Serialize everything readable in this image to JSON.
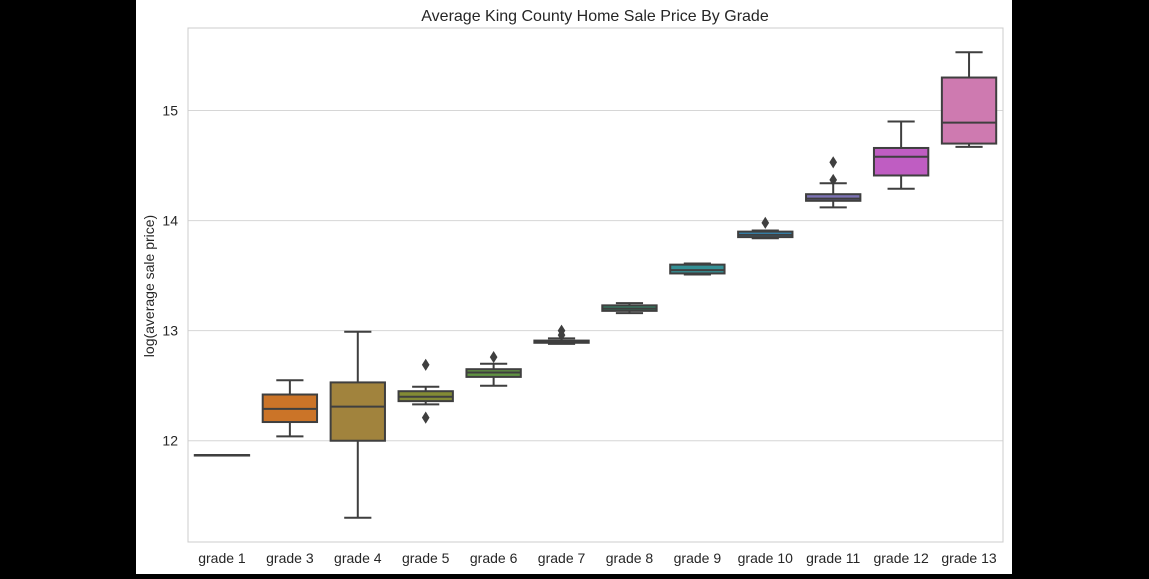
{
  "chart_data": {
    "type": "box",
    "title": "Average King County Home Sale Price By Grade",
    "xlabel": "",
    "ylabel": "log(average sale price)",
    "ylim": [
      11.08,
      15.75
    ],
    "yticks": [
      12,
      13,
      14,
      15
    ],
    "grid": true,
    "categories": [
      "grade 1",
      "grade 3",
      "grade 4",
      "grade 5",
      "grade 6",
      "grade 7",
      "grade 8",
      "grade 9",
      "grade 10",
      "grade 11",
      "grade 12",
      "grade 13"
    ],
    "boxes": [
      {
        "category": "grade 1",
        "color": "#3274a1",
        "min": 11.87,
        "q1": 11.87,
        "median": 11.87,
        "q3": 11.87,
        "max": 11.87,
        "outliers": []
      },
      {
        "category": "grade 3",
        "color": "#e1812c",
        "min": 12.04,
        "q1": 12.17,
        "median": 12.29,
        "q3": 12.42,
        "max": 12.55,
        "outliers": []
      },
      {
        "category": "grade 4",
        "color": "#b39144",
        "min": 11.3,
        "q1": 12.0,
        "median": 12.31,
        "q3": 12.53,
        "max": 12.99,
        "outliers": []
      },
      {
        "category": "grade 5",
        "color": "#929a3b",
        "min": 12.33,
        "q1": 12.36,
        "median": 12.4,
        "q3": 12.45,
        "max": 12.49,
        "outliers": [
          12.69,
          12.21
        ]
      },
      {
        "category": "grade 6",
        "color": "#6ba24a",
        "min": 12.5,
        "q1": 12.58,
        "median": 12.62,
        "q3": 12.65,
        "max": 12.7,
        "outliers": [
          12.76
        ]
      },
      {
        "category": "grade 7",
        "color": "#3a923a",
        "min": 12.88,
        "q1": 12.89,
        "median": 12.9,
        "q3": 12.91,
        "max": 12.93,
        "outliers": [
          13.0,
          12.96
        ]
      },
      {
        "category": "grade 8",
        "color": "#3d8b6e",
        "min": 13.16,
        "q1": 13.18,
        "median": 13.2,
        "q3": 13.23,
        "max": 13.25,
        "outliers": []
      },
      {
        "category": "grade 9",
        "color": "#3aa0a5",
        "min": 13.51,
        "q1": 13.52,
        "median": 13.55,
        "q3": 13.6,
        "max": 13.61,
        "outliers": []
      },
      {
        "category": "grade 10",
        "color": "#3c95c3",
        "min": 13.84,
        "q1": 13.85,
        "median": 13.87,
        "q3": 13.9,
        "max": 13.91,
        "outliers": [
          13.98
        ]
      },
      {
        "category": "grade 11",
        "color": "#8a7fc9",
        "min": 14.12,
        "q1": 14.18,
        "median": 14.2,
        "q3": 14.24,
        "max": 14.34,
        "outliers": [
          14.53,
          14.37
        ]
      },
      {
        "category": "grade 12",
        "color": "#d467d7",
        "min": 14.29,
        "q1": 14.41,
        "median": 14.58,
        "q3": 14.66,
        "max": 14.9,
        "outliers": []
      },
      {
        "category": "grade 13",
        "color": "#e588c4",
        "min": 14.67,
        "q1": 14.7,
        "median": 14.89,
        "q3": 15.3,
        "max": 15.53,
        "outliers": []
      }
    ]
  }
}
